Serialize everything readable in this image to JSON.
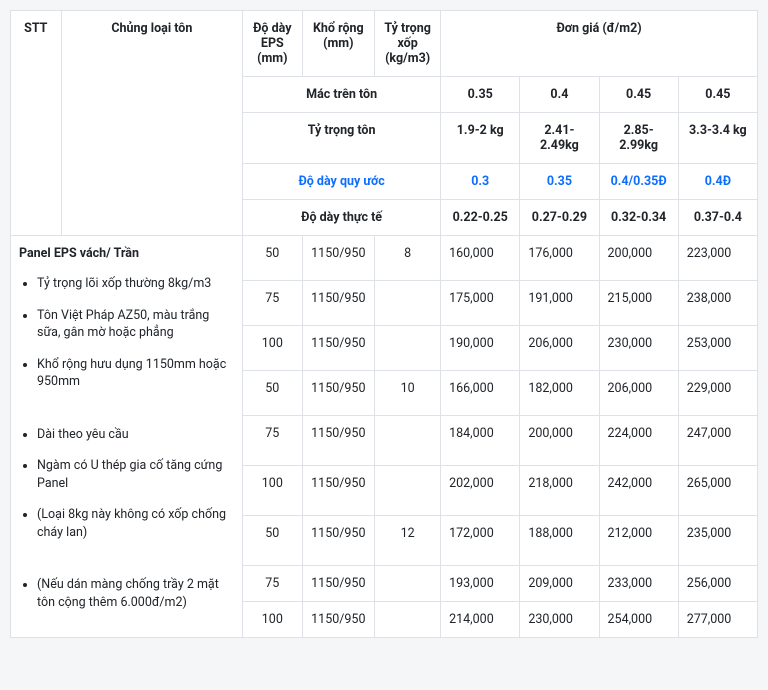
{
  "header": {
    "stt": "STT",
    "type": "Chủng loại tôn",
    "eps": "Độ dày EPS (mm)",
    "width": "Khổ rộng (mm)",
    "density": "Tỷ trọng xốp (kg/m3)",
    "price": "Đơn giá (đ/m2)"
  },
  "sub": {
    "mac_lbl": "Mác trên tôn",
    "mac": [
      "0.35",
      "0.4",
      "0.45",
      "0.45"
    ],
    "ty_lbl": "Tỷ trọng tôn",
    "ty": [
      "1.9-2 kg",
      "2.41-2.49kg",
      "2.85-2.99kg",
      "3.3-3.4 kg"
    ],
    "qu_lbl": "Độ dày quy ước",
    "qu": [
      "0.3",
      "0.35",
      "0.4/0.35Đ",
      "0.4Đ"
    ],
    "tt_lbl": "Độ dày thực tế",
    "tt": [
      "0.22-0.25",
      "0.27-0.29",
      "0.32-0.34",
      "0.37-0.4"
    ]
  },
  "product": {
    "title": "Panel EPS vách/ Trần",
    "bullets": [
      "Tỷ trọng lõi xốp thường 8kg/m3",
      "Tôn Việt Pháp AZ50, màu trắng sữa, gân mờ hoặc phẳng",
      "Khổ rộng hưu dụng 1150mm hoặc 950mm",
      "Dài theo yêu cầu",
      "Ngàm có U thép gia cố tăng cứng Panel",
      "(Loại 8kg này không có xốp chống cháy lan)",
      "(Nếu dán màng chống trầy 2 mặt tôn cộng thêm 6.000đ/m2)"
    ]
  },
  "rows": [
    {
      "eps": "50",
      "w": "1150/950",
      "d": "8",
      "p": [
        "160,000",
        "176,000",
        "200,000",
        "223,000"
      ]
    },
    {
      "eps": "75",
      "w": "1150/950",
      "d": "",
      "p": [
        "175,000",
        "191,000",
        "215,000",
        "238,000"
      ]
    },
    {
      "eps": "100",
      "w": "1150/950",
      "d": "",
      "p": [
        "190,000",
        "206,000",
        "230,000",
        "253,000"
      ]
    },
    {
      "eps": "50",
      "w": "1150/950",
      "d": "10",
      "p": [
        "166,000",
        "182,000",
        "206,000",
        "229,000"
      ]
    },
    {
      "eps": "75",
      "w": "1150/950",
      "d": "",
      "p": [
        "184,000",
        "200,000",
        "224,000",
        "247,000"
      ]
    },
    {
      "eps": "100",
      "w": "1150/950",
      "d": "",
      "p": [
        "202,000",
        "218,000",
        "242,000",
        "265,000"
      ]
    },
    {
      "eps": "50",
      "w": "1150/950",
      "d": "12",
      "p": [
        "172,000",
        "188,000",
        "212,000",
        "235,000"
      ]
    },
    {
      "eps": "75",
      "w": "1150/950",
      "d": "",
      "p": [
        "193,000",
        "209,000",
        "233,000",
        "256,000"
      ]
    },
    {
      "eps": "100",
      "w": "1150/950",
      "d": "",
      "p": [
        "214,000",
        "230,000",
        "254,000",
        "277,000"
      ]
    }
  ],
  "layout": {
    "descRowspans": [
      4,
      3,
      2
    ]
  }
}
